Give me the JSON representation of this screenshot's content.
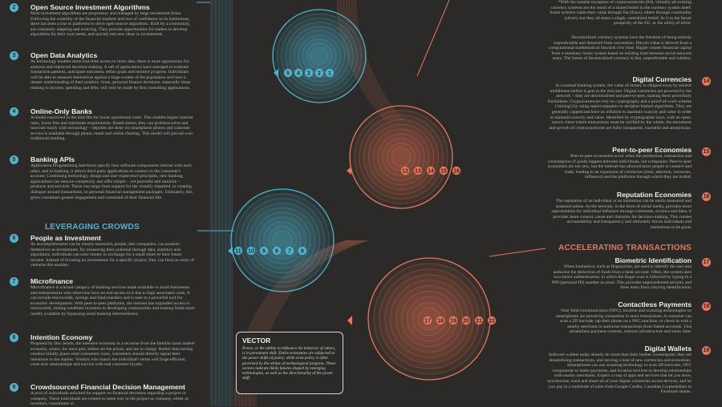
{
  "left": {
    "items": [
      {
        "n": "2",
        "title": "Open Source Investment Algorithms",
        "text": "Most investment algorithms are proprietary and managed by large investment firms. Following the volatility of the financial markets and loss of confidence in its institutions, there has been a rise in platforms to drive open-source algorithms. Built by a community, are constantly adapting and evolving. They provide opportunities for traders to develop algorithms for their own needs, and quickly test new ideas in investments."
      },
      {
        "n": "3",
        "title": "Open Data Analytics",
        "text": "As technology enables more real-time access to more data, there is more opportunity for analysis and improved decision-making. A raft of applications have emerged to evaluate transaction patterns, anticipate outcomes, refine goals and monitor progress. Individuals will be able to measure themselves against a large swathe of the population and have a deeper understanding of their position. Soon, personal finance decisions, especially those relating to income, spending and debt, will only be made by first consulting applications."
      },
      {
        "n": "4",
        "title": "Online-Only Banks",
        "text": "A model conceived in the mid-90s for lower operational costs. This enables higher interest rates, lower fees and minimum requirements. Based online, they can problem-solve and innovate easily with technology – deposits are done via smartphone photos and customer service is available through phone, email and online chatting. This model will prevail over traditional banking."
      },
      {
        "n": "5",
        "title": "Banking APIs",
        "text": "Application Programming Interfaces specify how software components interact with each other, and in banking, it allows third party applications to connect to the consumer's account. Combining technology, design and user-experience principles, new banking applications can remove complexity and offer simple – yet powerful and intuitive – products and services. These can range from support for the visually impaired, to creating dialogue around transactions, to personal financial management packages. Ultimately, this gives consumers greater engagement and command of their financial life."
      },
      {
        "n": "6",
        "title": "People as Investment",
        "text": "As accomplishments can be clearly measured, people, like companies, can position themselves as investments. By measuring their potential through data, statistics and algorithms, individuals can raise money in exchange for a small share of their future income. Instead of focusing on investments for a specific project, they can fund an array of ventures this enables."
      },
      {
        "n": "7",
        "title": "Microfinance",
        "text": "Microfinance is a broad category of banking services made available to small businesses and entrepreneurs who otherwise have no real access to it due to high associated costs. It can include microcredit, savings and fund transfers and is seen to a powerful tool for economic development. With peer-to-peer platforms, the internet has expanded access to microcredit, linking wealthier investors to developing communities and making funds more readily available by bypassing usual banking intermediaries."
      },
      {
        "n": "8",
        "title": "Intention Economy",
        "text": "Proposed by Doc Searls, the intention economy is a recourse from the familiar mass market economy, where, for most part, sellers set the prices, and are in charge. Rather than having vendors blindly guess what consumers want, consumers should directly signal their intentions to the market. Vendors who match the individual's terms will forge efficient, close-knit relationships and survive with real customer loyalty."
      },
      {
        "n": "9",
        "title": "Crowdsourced Financial Decision Management",
        "text": "A pool of individuals solicited for support on financial decisions regarding a project or company. These individuals are related in some way to the project or company, either as investors, consultants or"
      }
    ],
    "section": "LEVERAGING CROWDS"
  },
  "right": {
    "intro1": "*With the notable exception of cryptocurrencies (#4), virtually all existing currency systems are the result of a shared belief in the currency system itself. Some systems claim their value through fiat (Euro), others through commodity (silver), but they all share a single, centralised belief, be it in the future prosperity of the EU, or the utility of silver.",
    "intro2": "Decentralized currency systems have the freedom of being entirely unpredictable and detached from convention. Bitcoin value is derived from a computational mathematical function over time. Ripple creates financial capital from a monetary honor system based on existing trust between social network users. The future of decentralized currency is fast, unpredictable and ruthless.",
    "items": [
      {
        "n": "14",
        "title": "Digital Currencies",
        "text": "In a normal banking system, the value of money is chipped away by several middlemen before it gets to the end user. Digital currencies are powered by the network – they are decentralised and peer-to-peer, making them powerfully frictionless. Cryptocurrencies rely on cryptography and a proof-of-work scheme ('mining') by using supercomputers to decipher hashed algorithms. They are generally capped and have no inflation to maintain scarcity and value in order to maintain scarcity and value. Identified by cryptographic keys, with an open-source client where transactions must be verified by the whole, the movement and growth of cryptocurrencies are fully transparent, traceable and anonymous."
      },
      {
        "n": "15",
        "title": "Peer-to-peer Economies",
        "text": "Peer-to-peer economies occur when the production, transaction and consumption of goods happen between individuals, not companies. Peer-to-peer economies are not new, but the internet has allowed more people to connect and trade, leading to an expansion of currencies (time, attention, resources, influence) and the platforms through which they are traded."
      },
      {
        "n": "16",
        "title": "Reputation Economies",
        "text": "The reputation of an individual or an institution can be easily measured and assessed online. As the network, in the form of social media, provides more opportunities for individual influence through comments, reviews and likes, it provides more context, cause and character for decision-making. This creates accountability and transparency and ultimately drives individuals and institutions to be good."
      },
      {
        "n": "17",
        "title": "Biometric Identification",
        "text": "When biometrics, such as fingerprints, are used to identify the user and authorise the deduction of funds from a bank account. Often, the system uses two-factor authentication, in which the finger scan is followed by typing in a PIN (personal ID) number as usual. This provides unprecedented security and frees users from carrying identification."
      },
      {
        "n": "18",
        "title": "Contactless Payments",
        "text": "Near field communication (NFC), location and scanning technologies on smartphones are powering contactless in-store transactions. A customer can scan a 2D barcode, tap their phone on a NFC machine, or check in with a nearby merchant to authorize transactions from linked accounts. This streamlines payment systems, reduces infrastructure and saves time."
      },
      {
        "n": "19",
        "title": "Digital Wallets",
        "text": "Software wallets today already do more than their leather counterparts; they are streamlining transactions, and moving a host of new currencies and economies. Smartphones can use scanning technology to scan 2D barcodes, NFC components to make payments, and location services to develop relationships with nearby merchants. Expect a crop of apps and services that let you store, synchronise, track and share all of your digital currencies across devices, and let you pay in a multitude of units from Google Credits, Canadian Cryptodollars to Facebook shares."
      }
    ],
    "section": "ACCELERATING TRANSACTIONS"
  },
  "diagram": {
    "blue_top": [
      "5",
      "4",
      "3",
      "2",
      "1"
    ],
    "blue_mid": [
      "11",
      "10",
      "9",
      "8",
      "7",
      "6"
    ],
    "red_mid": [
      "12",
      "13",
      "14",
      "15",
      "16"
    ],
    "red_bottom": [
      "17",
      "18",
      "19",
      "20",
      "21",
      "22"
    ]
  },
  "vector": {
    "title": "VECTOR",
    "text": "Power, or the ability to influence the behavior of others, is in permanent shift. Entire economies are subjected to the power shifts of policy, while even policy is often governed by the whims of technological progress. These vectors indicate likely futures shaped by emerging technologies, as well as the directionality of the power shift."
  },
  "colors": {
    "background": "#2b2a28",
    "blue": "#4fb3cf",
    "red": "#e8765a",
    "text": "#d8d6d0"
  }
}
